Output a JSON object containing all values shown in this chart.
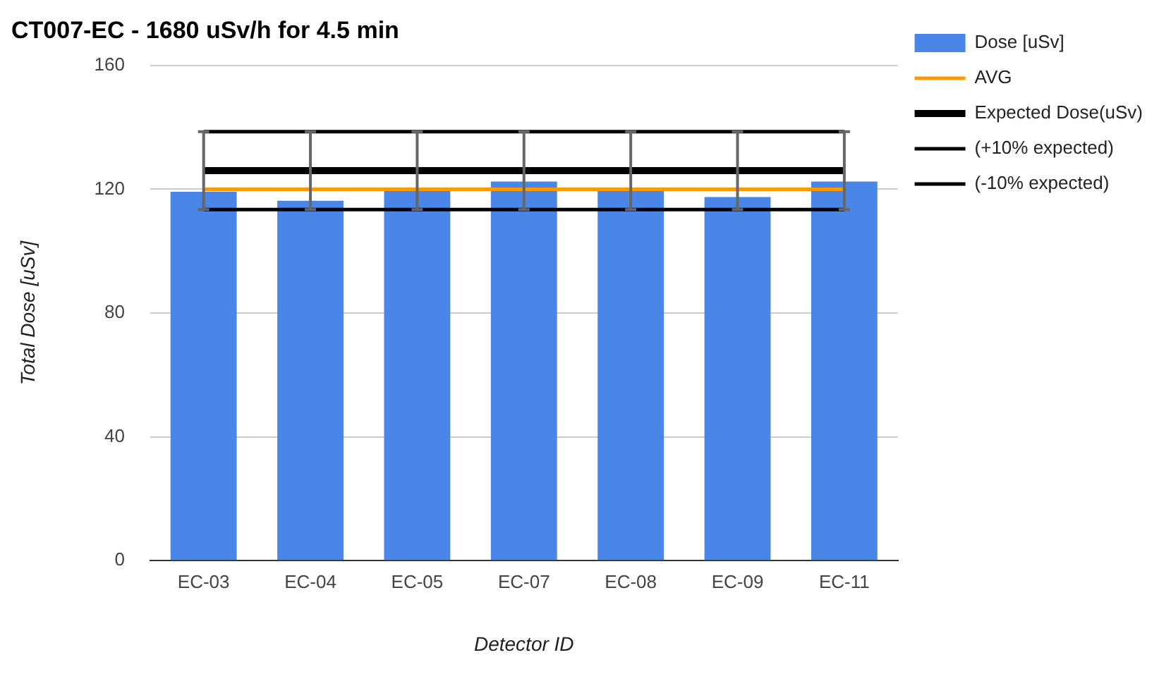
{
  "chart_data": {
    "type": "bar",
    "title": "CT007-EC - 1680 uSv/h for 4.5 min",
    "xlabel": "Detector ID",
    "ylabel": "Total Dose [uSv]",
    "categories": [
      "EC-03",
      "EC-04",
      "EC-05",
      "EC-07",
      "EC-08",
      "EC-09",
      "EC-11"
    ],
    "series": [
      {
        "name": "Dose [uSv]",
        "color": "#4a86e8",
        "values": [
          119.2,
          116.3,
          120,
          122.5,
          119.5,
          117.5,
          122.5
        ]
      },
      {
        "name": "AVG",
        "type": "line",
        "color": "#ff9900",
        "values": [
          120,
          120,
          120,
          120,
          120,
          120,
          120
        ]
      },
      {
        "name": "Expected Dose(uSv)",
        "type": "line",
        "color": "#000000",
        "values": [
          126,
          126,
          126,
          126,
          126,
          126,
          126
        ],
        "errors": [
          [
            113.4,
            138.6
          ],
          [
            113.4,
            138.6
          ],
          [
            113.4,
            138.6
          ],
          [
            113.4,
            138.6
          ],
          [
            113.4,
            138.6
          ],
          [
            113.4,
            138.6
          ],
          [
            113.4,
            138.6
          ]
        ]
      },
      {
        "name": "(+10% expected)",
        "type": "line",
        "color": "#000000",
        "values": [
          138.6,
          138.6,
          138.6,
          138.6,
          138.6,
          138.6,
          138.6
        ]
      },
      {
        "name": "(-10% expected)",
        "type": "line",
        "color": "#000000",
        "values": [
          113.4,
          113.4,
          113.4,
          113.4,
          113.4,
          113.4,
          113.4
        ]
      }
    ],
    "ylim": [
      0,
      160
    ],
    "yticks": [
      0,
      40,
      80,
      120,
      160
    ],
    "grid": "y",
    "legend": "right",
    "marker": "none"
  }
}
